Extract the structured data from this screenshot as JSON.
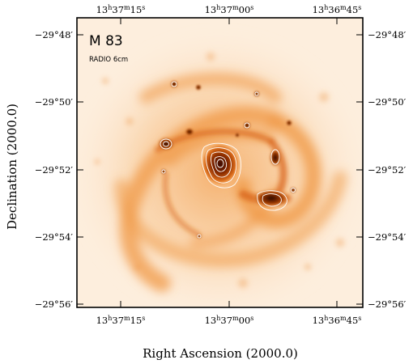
{
  "panel": {
    "title": "M 83",
    "subtitle": "RADIO 6cm"
  },
  "axes": {
    "xlabel": "Right Ascension (2000.0)",
    "ylabel": "Declination (2000.0)",
    "x_ticks": [
      {
        "h": "13",
        "m": "37",
        "s": "15"
      },
      {
        "h": "13",
        "m": "37",
        "s": "00"
      },
      {
        "h": "13",
        "m": "36",
        "s": "45"
      }
    ],
    "y_ticks": [
      {
        "deg": "−29°",
        "arcmin": "48′"
      },
      {
        "deg": "−29°",
        "arcmin": "50′"
      },
      {
        "deg": "−29°",
        "arcmin": "52′"
      },
      {
        "deg": "−29°",
        "arcmin": "54′"
      },
      {
        "deg": "−29°",
        "arcmin": "56′"
      }
    ]
  },
  "colors": {
    "background_glow": "#fde6c8",
    "arm_orange": "#f5a04a",
    "core_dark": "#5a1a00",
    "contour_white": "#ffffff"
  }
}
